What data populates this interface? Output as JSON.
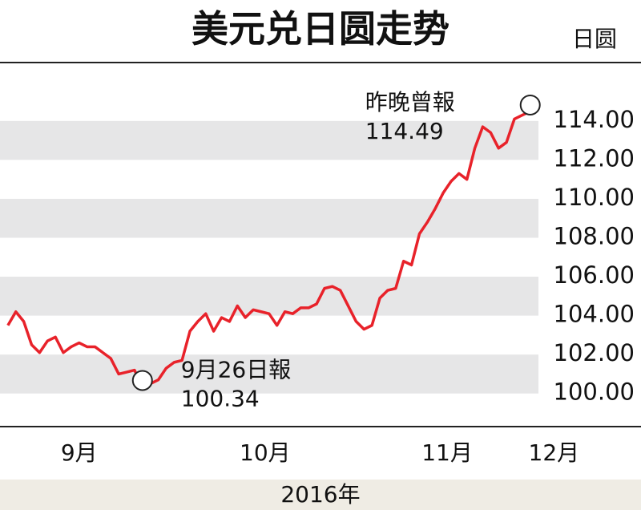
{
  "chart_data": {
    "type": "line",
    "title": "美元兑日圆走势",
    "y_axis_label": "日圆",
    "x_axis_label": "2016年",
    "x": [
      0,
      1,
      2,
      3,
      4,
      5,
      6,
      7,
      8,
      9,
      10,
      11,
      12,
      13,
      14,
      15,
      16,
      17,
      18,
      19,
      20,
      21,
      22,
      23,
      24,
      25,
      26,
      27,
      28,
      29,
      30,
      31,
      32,
      33,
      34,
      35,
      36,
      37,
      38,
      39,
      40,
      41,
      42,
      43,
      44,
      45,
      46,
      47,
      48,
      49,
      50,
      51,
      52,
      53,
      54,
      55,
      56,
      57,
      58,
      59,
      60,
      61,
      62,
      63,
      64,
      65,
      66
    ],
    "series": [
      {
        "name": "美元兑日圆",
        "color": "#e8222a",
        "values": [
          103.5,
          104.2,
          103.7,
          102.5,
          102.1,
          102.7,
          102.9,
          102.1,
          102.4,
          102.6,
          102.4,
          102.4,
          102.1,
          101.8,
          101.0,
          101.1,
          101.2,
          100.34,
          100.5,
          100.7,
          101.3,
          101.6,
          101.7,
          103.2,
          103.7,
          104.1,
          103.2,
          103.9,
          103.7,
          104.5,
          103.9,
          104.3,
          104.2,
          104.1,
          103.5,
          104.2,
          104.1,
          104.4,
          104.4,
          104.6,
          105.4,
          105.5,
          105.3,
          104.5,
          103.7,
          103.3,
          103.5,
          104.9,
          105.3,
          105.4,
          106.8,
          106.6,
          108.2,
          108.8,
          109.5,
          110.3,
          110.9,
          111.3,
          111.0,
          112.6,
          113.7,
          113.4,
          112.6,
          112.9,
          114.1,
          114.3,
          114.49
        ]
      }
    ],
    "xlim": [
      -1,
      80
    ],
    "xticks": [
      {
        "value": 9,
        "label": "9月"
      },
      {
        "value": 32.5,
        "label": "10月"
      },
      {
        "value": 55.5,
        "label": "11月"
      },
      {
        "value": 69,
        "label": "12月"
      }
    ],
    "ylim": [
      98.3,
      117
    ],
    "yticks": [
      {
        "value": 100,
        "label": "100.00"
      },
      {
        "value": 102,
        "label": "102.00"
      },
      {
        "value": 104,
        "label": "104.00"
      },
      {
        "value": 106,
        "label": "106.00"
      },
      {
        "value": 108,
        "label": "108.00"
      },
      {
        "value": 110,
        "label": "110.00"
      },
      {
        "value": 112,
        "label": "112.00"
      },
      {
        "value": 114,
        "label": "114.00"
      }
    ],
    "band_color": "#e6e6e7",
    "annotations": [
      {
        "text": "9月26日報",
        "label": "100.34",
        "index": 17
      },
      {
        "text": "昨晚曾報",
        "label": "114.49",
        "index": 66
      }
    ]
  }
}
